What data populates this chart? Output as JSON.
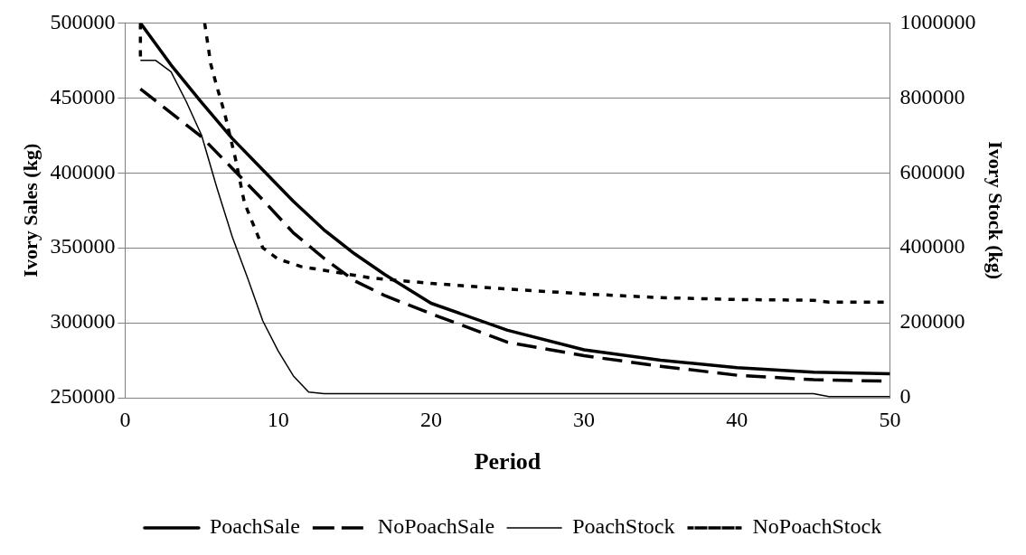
{
  "chart_data": {
    "type": "line",
    "xlabel": "Period",
    "ylabel": "Ivory Sales (kg)",
    "y2label": "Ivory Stock (kg)",
    "xlim": [
      0,
      50
    ],
    "xticks": [
      0,
      10,
      20,
      30,
      40,
      50
    ],
    "ylim": [
      250000,
      500000
    ],
    "yticks": [
      250000,
      300000,
      350000,
      400000,
      450000,
      500000
    ],
    "y2lim": [
      0,
      1000000
    ],
    "y2ticks": [
      0,
      200000,
      400000,
      600000,
      800000,
      1000000
    ],
    "grid": "y",
    "legend": "bottom",
    "marker": "none",
    "series": [
      {
        "name": "PoachSale",
        "color": "#000000",
        "line_style": "solid",
        "x": [
          1,
          3,
          5,
          7,
          9,
          11,
          13,
          15,
          17,
          20,
          25,
          30,
          35,
          40,
          45,
          50
        ],
        "values": [
          500000,
          472000,
          447000,
          423000,
          402000,
          381000,
          362000,
          346000,
          332000,
          313000,
          295000,
          282000,
          275000,
          270000,
          267000,
          266000
        ]
      },
      {
        "name": "NoPoachSale",
        "color": "#000000",
        "line_style": "dashed",
        "x": [
          1,
          3,
          5,
          7,
          9,
          11,
          13,
          15,
          17,
          20,
          25,
          30,
          35,
          40,
          45,
          50
        ],
        "values": [
          456000,
          440000,
          424000,
          403000,
          382000,
          360000,
          343000,
          328000,
          318000,
          306000,
          287000,
          278000,
          271000,
          265000,
          262000,
          261000
        ]
      },
      {
        "name": "PoachStock",
        "color": "#000000",
        "line_style": "solid",
        "axis": "y2",
        "x": [
          1,
          2,
          3,
          4,
          5,
          6,
          7,
          8,
          9,
          10,
          11,
          12,
          13,
          45,
          46,
          50
        ],
        "values": [
          900000,
          900000,
          870000,
          790000,
          700000,
          560000,
          430000,
          320000,
          205000,
          125000,
          58000,
          15000,
          11000,
          11000,
          3000,
          3000
        ]
      },
      {
        "name": "NoPoachStock",
        "color": "#000000",
        "line_style": "dotted",
        "axis": "y2",
        "x": [
          1,
          1,
          3,
          5.2,
          5.6,
          6,
          6.5,
          7.2,
          7.8,
          8.4,
          9,
          10,
          11.5,
          13,
          16,
          20,
          25,
          30,
          35,
          40,
          45,
          46,
          50
        ],
        "values": [
          1000000,
          900000,
          null,
          1000000,
          890000,
          830000,
          760000,
          640000,
          520000,
          460000,
          400000,
          370000,
          350000,
          340000,
          320000,
          305000,
          290000,
          277000,
          267000,
          262000,
          260000,
          255000,
          255000
        ]
      }
    ]
  }
}
